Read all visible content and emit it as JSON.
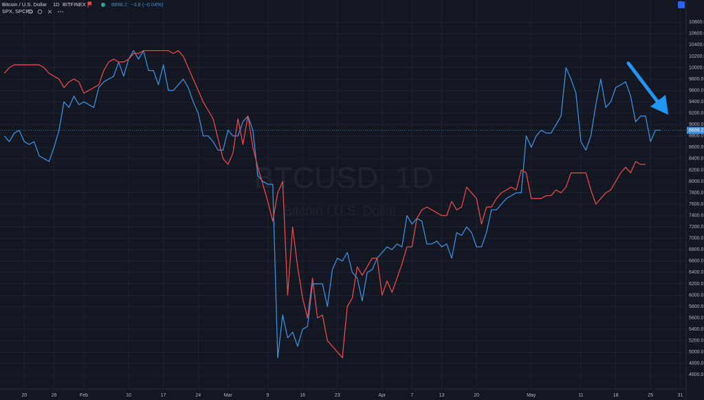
{
  "chart_data": {
    "type": "line",
    "title": "Bitcoin / U.S. Dollar",
    "interval": "1D",
    "exchange": "BITFINEX",
    "last_price": 8898.2,
    "change": "−3.8 (−0.04%)",
    "watermark": "BTCUSD, 1D",
    "grid": true,
    "ylim": [
      4350,
      11190
    ],
    "yticks": [
      {
        "value": 4600,
        "label": "4600.0"
      },
      {
        "value": 4800,
        "label": "4800.0"
      },
      {
        "value": 5000,
        "label": "5000.0"
      },
      {
        "value": 5200,
        "label": "5200.0"
      },
      {
        "value": 5400,
        "label": "5400.0"
      },
      {
        "value": 5600,
        "label": "5600.0"
      },
      {
        "value": 5800,
        "label": "5800.0"
      },
      {
        "value": 6000,
        "label": "6000.0"
      },
      {
        "value": 6200,
        "label": "6200.0"
      },
      {
        "value": 6400,
        "label": "6400.0"
      },
      {
        "value": 6600,
        "label": "6600.0"
      },
      {
        "value": 6800,
        "label": "6800.0"
      },
      {
        "value": 7000,
        "label": "7000.0"
      },
      {
        "value": 7200,
        "label": "7200.0"
      },
      {
        "value": 7400,
        "label": "7400.0"
      },
      {
        "value": 7600,
        "label": "7600.0"
      },
      {
        "value": 7800,
        "label": "7800.0"
      },
      {
        "value": 8000,
        "label": "8000.0"
      },
      {
        "value": 8200,
        "label": "8200.0"
      },
      {
        "value": 8400,
        "label": "8400.0"
      },
      {
        "value": 8600,
        "label": "8600.0"
      },
      {
        "value": 8800,
        "label": "8800.0"
      },
      {
        "value": 9000,
        "label": "9000.0"
      },
      {
        "value": 9200,
        "label": "9200.0"
      },
      {
        "value": 9400,
        "label": "9400.0"
      },
      {
        "value": 9600,
        "label": "9600.0"
      },
      {
        "value": 9800,
        "label": "9800.0"
      },
      {
        "value": 10000,
        "label": "10000.0"
      },
      {
        "value": 10200,
        "label": "10200.0"
      },
      {
        "value": 10400,
        "label": "10400.0"
      },
      {
        "value": 10600,
        "label": "10600.0"
      },
      {
        "value": 10800,
        "label": "10800.0"
      }
    ],
    "categories": [
      null,
      null,
      null,
      null,
      "20",
      null,
      null,
      null,
      null,
      null,
      "26",
      null,
      null,
      null,
      null,
      null,
      "Feb",
      null,
      null,
      null,
      null,
      null,
      null,
      null,
      null,
      "10",
      null,
      null,
      null,
      null,
      null,
      null,
      "17",
      null,
      null,
      null,
      null,
      null,
      null,
      "24",
      null,
      null,
      null,
      null,
      null,
      "Mar",
      null,
      null,
      null,
      null,
      null,
      null,
      null,
      "9",
      null,
      null,
      null,
      null,
      null,
      null,
      "16",
      null,
      null,
      null,
      null,
      null,
      null,
      "23",
      null,
      null,
      null,
      null,
      null,
      null,
      null,
      null,
      "Apr",
      null,
      null,
      null,
      null,
      null,
      "7",
      null,
      null,
      null,
      null,
      null,
      "13",
      null,
      null,
      null,
      null,
      null,
      null,
      "20",
      null,
      null,
      null,
      null,
      null,
      null,
      null,
      null,
      null,
      null,
      "May",
      null,
      null,
      null,
      null,
      null,
      null,
      null,
      null,
      null,
      "11",
      null,
      null,
      null,
      null,
      null,
      null,
      "18",
      null,
      null,
      null,
      null,
      null,
      null,
      "25",
      null,
      null,
      null,
      null,
      null,
      "31",
      null
    ],
    "series": [
      {
        "name": "Bitcoin / U.S. Dollar",
        "color": "#3d8fe0",
        "values": [
          8800,
          8700,
          8850,
          8900,
          8700,
          8650,
          8700,
          8450,
          8400,
          8350,
          8600,
          8900,
          9400,
          9300,
          9500,
          9350,
          9400,
          9350,
          9300,
          9650,
          9750,
          9800,
          9850,
          10100,
          9850,
          10150,
          10300,
          10150,
          10300,
          9950,
          9950,
          9700,
          10050,
          9600,
          9600,
          9700,
          9800,
          9650,
          9400,
          9200,
          8800,
          8800,
          8700,
          8550,
          8550,
          8900,
          8800,
          8800,
          9050,
          9150,
          8900,
          8100,
          8000,
          7950,
          7950,
          4900,
          5650,
          5250,
          5350,
          5100,
          5400,
          5450,
          6200,
          6200,
          6200,
          5800,
          6450,
          6650,
          6600,
          6750,
          6400,
          6300,
          5900,
          6400,
          6450,
          6650,
          6750,
          6850,
          6800,
          6900,
          6850,
          7400,
          7250,
          7350,
          7300,
          6900,
          6900,
          6950,
          6850,
          6900,
          6650,
          7100,
          7050,
          7200,
          7100,
          6850,
          6850,
          7100,
          7500,
          7500,
          7600,
          7700,
          7750,
          7800,
          7800,
          8800,
          8600,
          8800,
          8900,
          8850,
          8850,
          9000,
          9150,
          10000,
          9800,
          9550,
          8700,
          8550,
          8800,
          9350,
          9800,
          9300,
          9400,
          9650,
          9700,
          9750,
          9500,
          9050,
          9150,
          9150,
          8700,
          8900,
          8900,
          null,
          null,
          null,
          null,
          null
        ]
      },
      {
        "name": "SPX, SPCFD",
        "color": "#e8494a",
        "values": [
          9900,
          10000,
          10050,
          10050,
          10050,
          10050,
          10050,
          10050,
          10000,
          9900,
          9850,
          9800,
          9650,
          9750,
          9800,
          9750,
          9550,
          9600,
          9650,
          9700,
          9950,
          10100,
          10150,
          10100,
          10100,
          10150,
          10250,
          10250,
          10300,
          10300,
          10300,
          10300,
          10300,
          10300,
          10250,
          10300,
          10200,
          10000,
          9800,
          9600,
          9400,
          9250,
          9100,
          8750,
          8400,
          8300,
          8500,
          9100,
          8650,
          9150,
          8600,
          8250,
          7950,
          7650,
          7300,
          7800,
          8000,
          6000,
          7200,
          6500,
          5950,
          5600,
          6300,
          5600,
          5650,
          5200,
          5100,
          5000,
          4900,
          5800,
          5950,
          6500,
          6350,
          6500,
          6650,
          6650,
          6000,
          6250,
          6050,
          6300,
          6550,
          6850,
          6850,
          7350,
          7500,
          7550,
          7500,
          7450,
          7400,
          7400,
          7650,
          7500,
          7550,
          7900,
          7800,
          7700,
          7250,
          7550,
          7550,
          7700,
          7800,
          7850,
          7900,
          7850,
          8200,
          8150,
          7700,
          7700,
          7700,
          7750,
          7750,
          7850,
          7800,
          7900,
          8150,
          8150,
          8150,
          8150,
          7850,
          7600,
          7700,
          7800,
          7850,
          8000,
          8150,
          8250,
          8150,
          8350,
          8300,
          8300,
          null,
          null,
          null,
          null,
          null,
          null,
          null,
          null
        ]
      }
    ]
  }
}
